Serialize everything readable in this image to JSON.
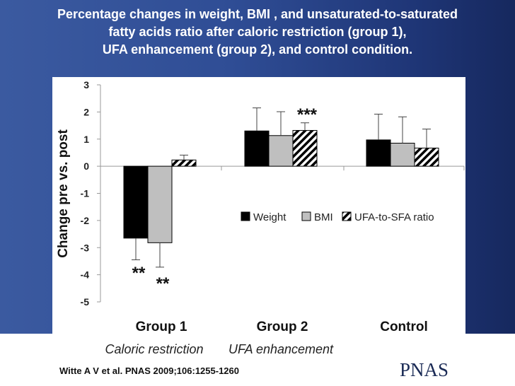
{
  "slide": {
    "title_lines": [
      "Percentage changes in weight, BMI , and unsaturated-to-saturated",
      "fatty acids ratio after caloric restriction (group 1),",
      "UFA enhancement (group 2), and control condition."
    ],
    "citation": "Witte A V et al. PNAS 2009;106:1255-1260",
    "logo_text": "PNAS"
  },
  "colors": {
    "weight": "#000000",
    "bmi": "#bfbfbf",
    "ufa": "hatched-black-white"
  },
  "chart_data": {
    "type": "bar",
    "ylabel": "Change pre vs. post",
    "ylim": [
      -5,
      3
    ],
    "yticks": [
      3,
      2,
      1,
      0,
      -1,
      -2,
      -3,
      -4,
      -5
    ],
    "categories": [
      "Group 1",
      "Group 2",
      "Control"
    ],
    "category_sublabels": [
      "Caloric restriction",
      "UFA enhancement",
      ""
    ],
    "series": [
      {
        "name": "Weight",
        "values": [
          -2.65,
          1.3,
          0.97
        ],
        "errors": [
          0.8,
          0.85,
          0.95
        ]
      },
      {
        "name": "BMI",
        "values": [
          -2.82,
          1.13,
          0.85
        ],
        "errors": [
          0.9,
          0.88,
          0.97
        ]
      },
      {
        "name": "UFA-to-SFA ratio",
        "values": [
          0.23,
          1.32,
          0.67
        ],
        "errors": [
          0.18,
          0.28,
          0.7
        ]
      }
    ],
    "annotations": [
      {
        "text": "**",
        "category": "Group 1",
        "series": "Weight"
      },
      {
        "text": "**",
        "category": "Group 1",
        "series": "BMI"
      },
      {
        "text": "***",
        "category": "Group 2",
        "series": "UFA-to-SFA ratio"
      }
    ],
    "legend_position": "right-middle",
    "grid": false
  }
}
